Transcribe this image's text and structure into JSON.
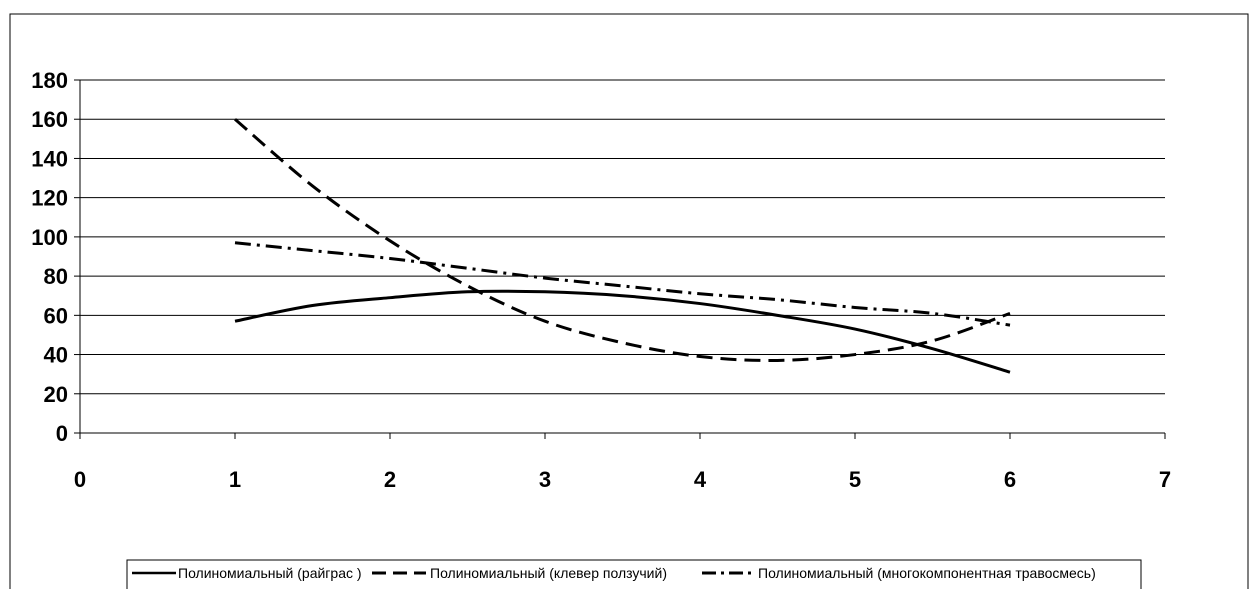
{
  "chart_data": {
    "type": "line",
    "title": "",
    "xlabel": "",
    "ylabel": "",
    "xlim": [
      0,
      7
    ],
    "ylim": [
      0,
      180
    ],
    "x_ticks": [
      "0",
      "1",
      "2",
      "3",
      "4",
      "5",
      "6",
      "7"
    ],
    "y_ticks": [
      "0",
      "20",
      "40",
      "60",
      "80",
      "100",
      "120",
      "140",
      "160",
      "180"
    ],
    "grid": true,
    "legend_position": "bottom",
    "series": [
      {
        "name": "Полиномиальный (райграс )",
        "style": "solid",
        "x": [
          1,
          1.5,
          2,
          2.5,
          3,
          3.5,
          4,
          4.5,
          5,
          5.5,
          6
        ],
        "y": [
          57,
          65,
          69,
          72,
          72,
          70,
          66,
          60,
          53,
          43,
          31
        ]
      },
      {
        "name": "Полиномиальный (клевер ползучий)",
        "style": "dashed",
        "x": [
          1,
          1.5,
          2,
          2.5,
          3,
          3.5,
          4,
          4.5,
          5,
          5.5,
          6
        ],
        "y": [
          160,
          126,
          98,
          75,
          57,
          46,
          39,
          37,
          40,
          47,
          61
        ]
      },
      {
        "name": "Полиномиальный (многокомпонентная травосмесь)",
        "style": "dashdot",
        "x": [
          1,
          1.5,
          2,
          2.5,
          3,
          3.5,
          4,
          4.5,
          5,
          5.5,
          6
        ],
        "y": [
          97,
          93,
          89,
          84,
          79,
          75,
          71,
          68,
          64,
          61,
          55
        ]
      }
    ]
  }
}
